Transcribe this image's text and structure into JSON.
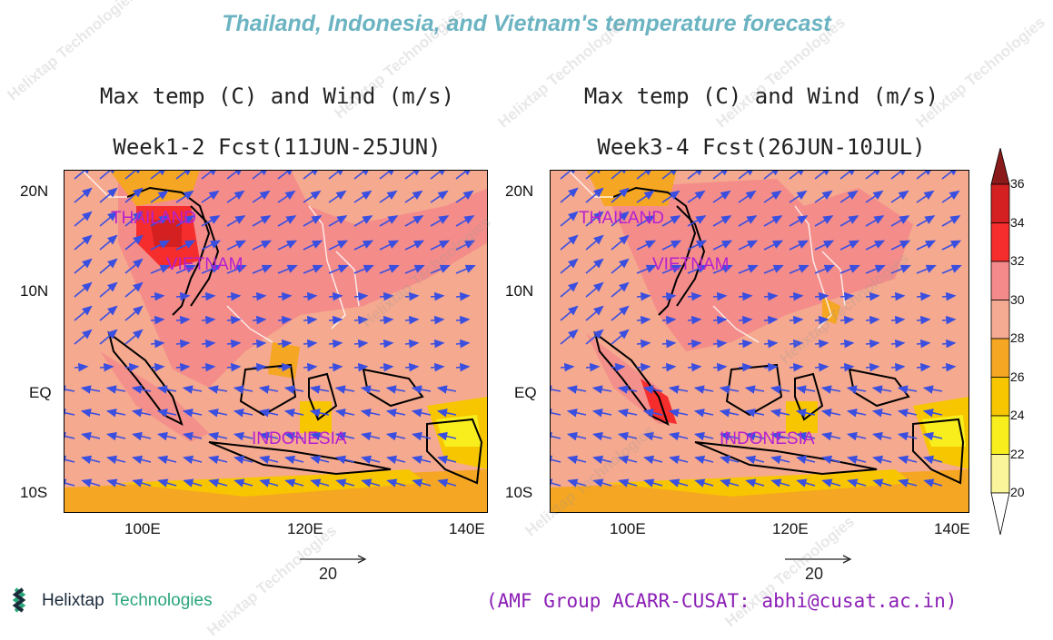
{
  "title": "Thailand, Indonesia, and Vietnam's temperature forecast",
  "panels": [
    {
      "line1": "Max temp (C) and Wind (m/s)",
      "line2": "Week1-2 Fcst(11JUN-25JUN)",
      "ref_vector": "20"
    },
    {
      "line1": "Max temp (C) and Wind (m/s)",
      "line2": "Week3-4 Fcst(26JUN-10JUL)",
      "ref_vector": "20"
    }
  ],
  "axes": {
    "lat_ticks": [
      "20N",
      "10N",
      "EQ",
      "10S"
    ],
    "lon_ticks": [
      "100E",
      "120E",
      "140E"
    ]
  },
  "countries": {
    "thailand": "THAILAND",
    "vietnam": "VIETNAM",
    "indonesia": "INDONESIA"
  },
  "colorbar": {
    "levels": [
      "36",
      "34",
      "32",
      "30",
      "28",
      "26",
      "24",
      "22",
      "20"
    ],
    "colors": [
      "#8b1a1a",
      "#d42020",
      "#f52d2d",
      "#f48a8a",
      "#f5aa92",
      "#f5a623",
      "#f7c600",
      "#f8ee1e",
      "#faf59a",
      "#ffffff"
    ]
  },
  "brand": {
    "name_a": "Helixtap",
    "name_b": "Technologies",
    "watermark": "Helixtap Technologies"
  },
  "credit": "(AMF Group ACARR-CUSAT: abhi@cusat.ac.in)"
}
